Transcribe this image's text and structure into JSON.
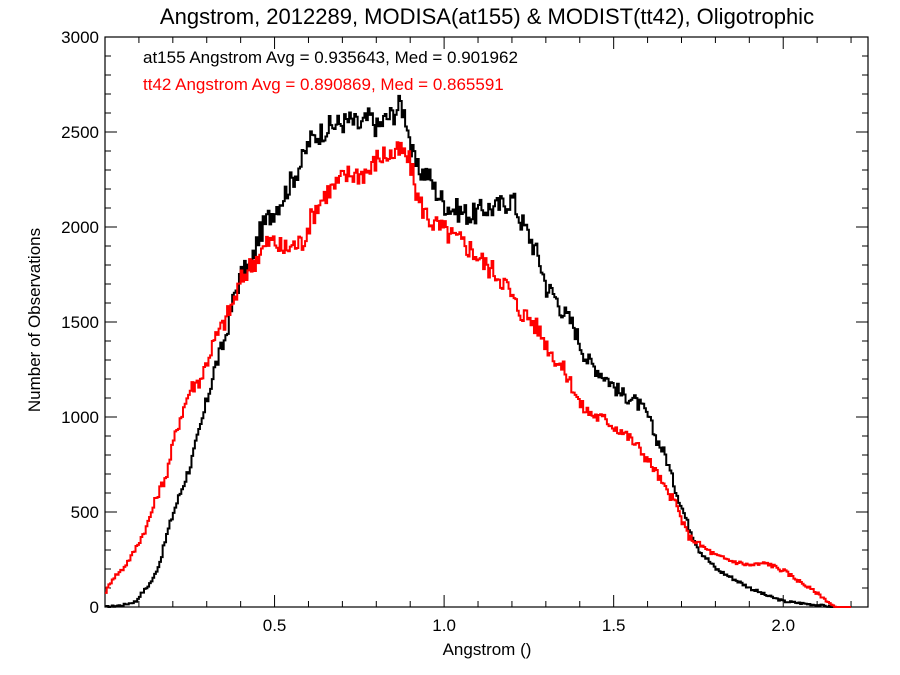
{
  "chart_data": {
    "type": "line",
    "title": "Angstrom, 2012289, MODISA(at155) & MODIST(tt42), Oligotrophic",
    "xlabel": "Angstrom ()",
    "ylabel": "Number of Observations",
    "xlim": [
      0.0,
      2.25
    ],
    "ylim": [
      0,
      3000
    ],
    "x_ticks": [
      0.5,
      1.0,
      1.5,
      2.0
    ],
    "x_tick_labels": [
      "0.5",
      "1.0",
      "1.5",
      "2.0"
    ],
    "y_ticks": [
      0,
      500,
      1000,
      1500,
      2000,
      2500,
      3000
    ],
    "y_tick_labels": [
      "0",
      "500",
      "1000",
      "1500",
      "2000",
      "2500",
      "3000"
    ],
    "grid": false,
    "annotations": [
      {
        "text": "at155 Angstrom Avg = 0.935643, Med = 0.901962",
        "color": "#000000"
      },
      {
        "text": "tt42 Angstrom Avg = 0.890869, Med = 0.865591",
        "color": "#ff0000"
      }
    ],
    "series": [
      {
        "color": "#000000",
        "x": [
          0.0,
          0.05,
          0.09,
          0.1,
          0.12,
          0.14,
          0.16,
          0.18,
          0.2,
          0.22,
          0.25,
          0.28,
          0.3,
          0.32,
          0.35,
          0.38,
          0.4,
          0.43,
          0.45,
          0.48,
          0.5,
          0.52,
          0.55,
          0.58,
          0.6,
          0.62,
          0.65,
          0.68,
          0.7,
          0.72,
          0.75,
          0.78,
          0.8,
          0.82,
          0.85,
          0.87,
          0.89,
          0.9,
          0.92,
          0.95,
          0.97,
          1.0,
          1.02,
          1.05,
          1.08,
          1.1,
          1.12,
          1.15,
          1.18,
          1.2,
          1.22,
          1.25,
          1.28,
          1.3,
          1.32,
          1.35,
          1.38,
          1.4,
          1.42,
          1.45,
          1.48,
          1.5,
          1.52,
          1.55,
          1.58,
          1.6,
          1.62,
          1.65,
          1.68,
          1.7,
          1.72,
          1.75,
          1.8,
          1.85,
          1.9,
          1.95,
          2.0,
          2.05,
          2.1,
          2.15
        ],
        "y": [
          0,
          10,
          30,
          60,
          100,
          150,
          240,
          380,
          500,
          600,
          750,
          950,
          1100,
          1250,
          1400,
          1650,
          1750,
          1800,
          1950,
          2050,
          2100,
          2150,
          2250,
          2350,
          2450,
          2480,
          2520,
          2540,
          2550,
          2560,
          2530,
          2580,
          2520,
          2560,
          2600,
          2650,
          2550,
          2400,
          2300,
          2280,
          2200,
          2120,
          2100,
          2080,
          2060,
          2080,
          2100,
          2100,
          2130,
          2150,
          2050,
          1950,
          1820,
          1680,
          1650,
          1550,
          1480,
          1380,
          1300,
          1250,
          1200,
          1160,
          1120,
          1100,
          1050,
          1000,
          900,
          800,
          620,
          520,
          420,
          300,
          200,
          150,
          100,
          60,
          30,
          20,
          10,
          0
        ]
      },
      {
        "color": "#ff0000",
        "x": [
          0.0,
          0.02,
          0.05,
          0.08,
          0.1,
          0.12,
          0.15,
          0.18,
          0.2,
          0.22,
          0.25,
          0.28,
          0.3,
          0.32,
          0.35,
          0.38,
          0.4,
          0.42,
          0.45,
          0.48,
          0.5,
          0.52,
          0.55,
          0.58,
          0.6,
          0.62,
          0.65,
          0.68,
          0.7,
          0.72,
          0.75,
          0.78,
          0.8,
          0.82,
          0.85,
          0.87,
          0.89,
          0.9,
          0.92,
          0.95,
          0.98,
          1.0,
          1.02,
          1.05,
          1.08,
          1.1,
          1.12,
          1.15,
          1.18,
          1.2,
          1.22,
          1.25,
          1.28,
          1.3,
          1.32,
          1.35,
          1.38,
          1.4,
          1.42,
          1.45,
          1.48,
          1.5,
          1.52,
          1.55,
          1.58,
          1.6,
          1.62,
          1.65,
          1.68,
          1.7,
          1.72,
          1.75,
          1.8,
          1.85,
          1.9,
          1.95,
          2.0,
          2.05,
          2.1,
          2.15
        ],
        "y": [
          80,
          150,
          200,
          280,
          350,
          420,
          580,
          700,
          870,
          1000,
          1150,
          1200,
          1300,
          1400,
          1500,
          1620,
          1720,
          1780,
          1850,
          1920,
          1920,
          1880,
          1900,
          1920,
          2020,
          2100,
          2180,
          2220,
          2260,
          2280,
          2280,
          2300,
          2360,
          2380,
          2380,
          2400,
          2360,
          2320,
          2150,
          2050,
          2000,
          1980,
          1950,
          1920,
          1880,
          1840,
          1800,
          1760,
          1700,
          1620,
          1560,
          1520,
          1450,
          1380,
          1320,
          1250,
          1150,
          1060,
          1030,
          1000,
          980,
          950,
          930,
          880,
          820,
          770,
          720,
          620,
          550,
          450,
          370,
          330,
          270,
          240,
          220,
          230,
          190,
          130,
          70,
          0
        ]
      }
    ]
  }
}
